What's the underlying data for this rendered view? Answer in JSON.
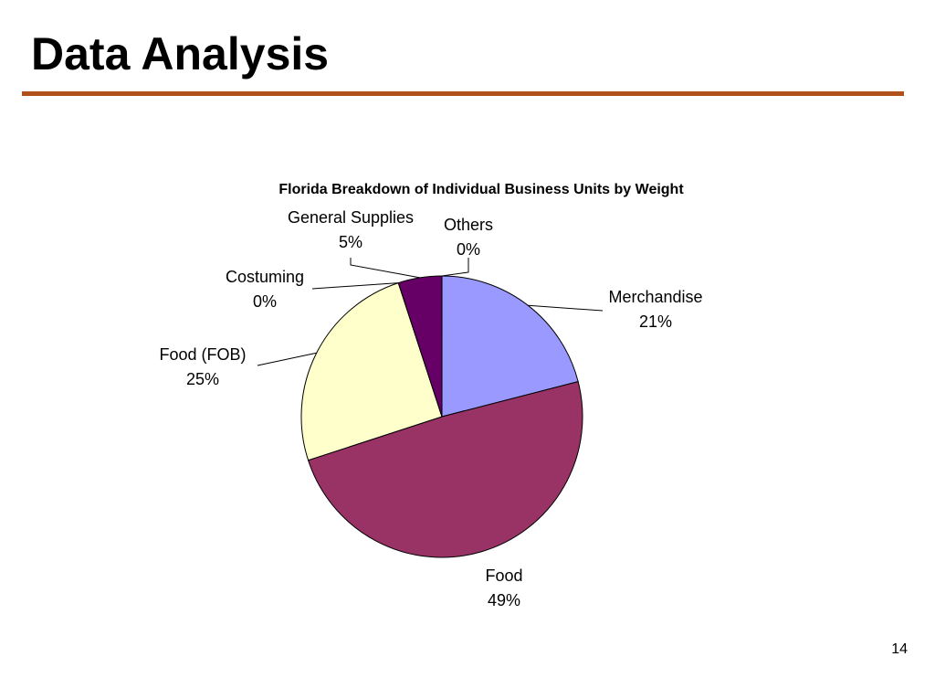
{
  "slide": {
    "title": "Data Analysis",
    "page_number": "14",
    "rule_color": "#b0501a"
  },
  "chart_data": {
    "type": "pie",
    "title": "Florida Breakdown of Individual Business Units by Weight",
    "slices": [
      {
        "name": "Merchandise",
        "percent_label": "21%",
        "value": 21,
        "color": "#9999ff"
      },
      {
        "name": "Food",
        "percent_label": "49%",
        "value": 49,
        "color": "#993366"
      },
      {
        "name": "Food (FOB)",
        "percent_label": "25%",
        "value": 25,
        "color": "#ffffcc"
      },
      {
        "name": "Costuming",
        "percent_label": "0%",
        "value": 0.01,
        "color": "#ccffff"
      },
      {
        "name": "General Supplies",
        "percent_label": "5%",
        "value": 5,
        "color": "#660066"
      },
      {
        "name": "Others",
        "percent_label": "0%",
        "value": 0.01,
        "color": "#ff8080"
      }
    ],
    "start_angle": "12 o'clock",
    "direction": "clockwise",
    "legend": "none"
  }
}
